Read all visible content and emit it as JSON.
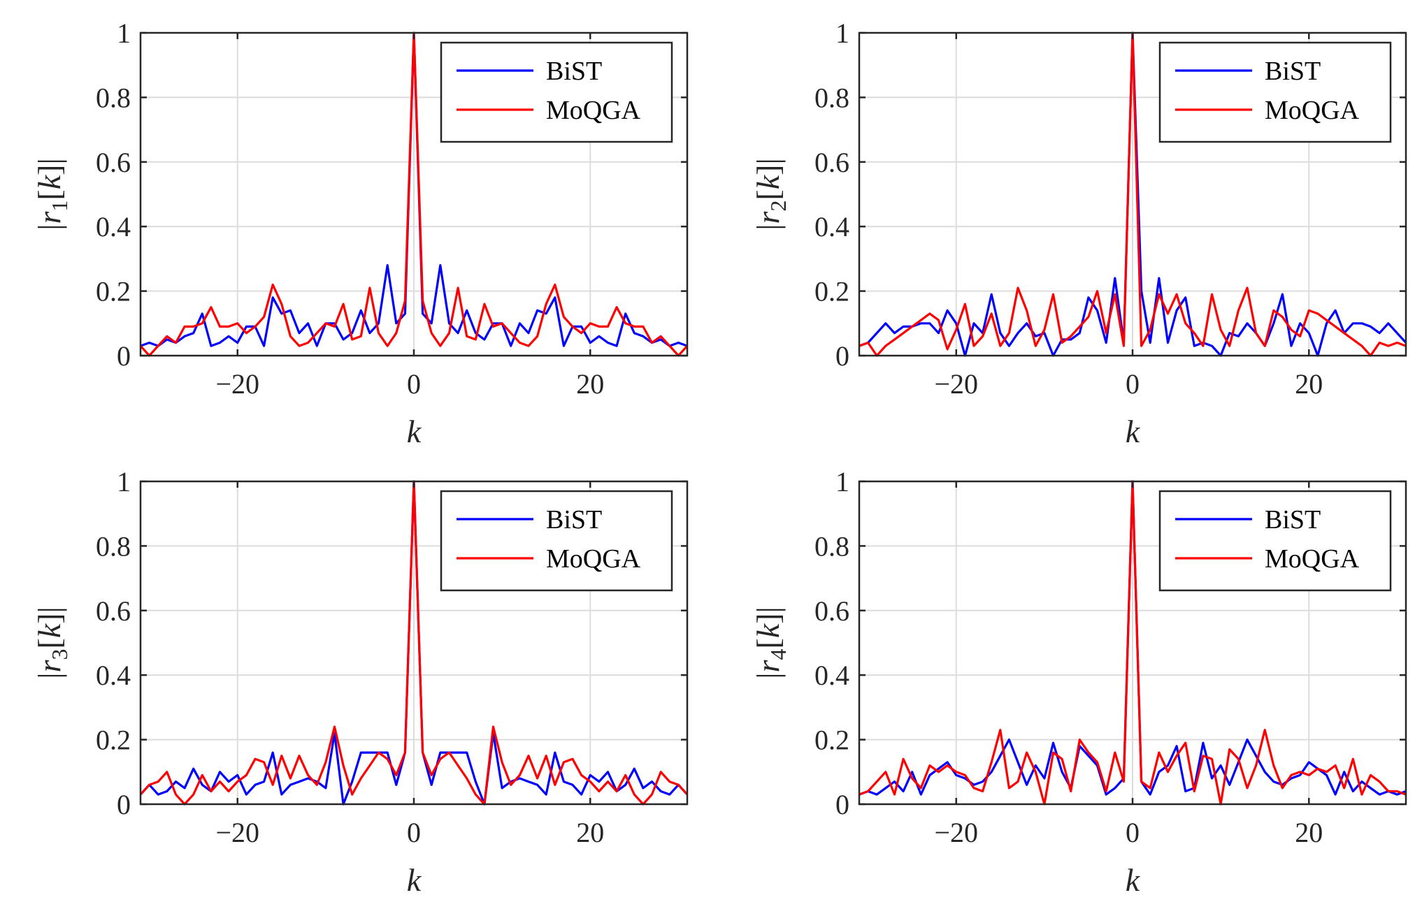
{
  "chart_data": [
    {
      "type": "line",
      "ylabel": "|r_1[k]|",
      "ylabel_parts": {
        "open": "|",
        "var": "r",
        "sub": "1",
        "mid": "[",
        "arg": "k",
        "close": "]|"
      },
      "xlabel": "k",
      "xlim": [
        -31,
        31
      ],
      "ylim": [
        0,
        1
      ],
      "xticks": [
        -20,
        0,
        20
      ],
      "xtick_labels": [
        "−20",
        "0",
        "20"
      ],
      "yticks": [
        0,
        0.2,
        0.4,
        0.6,
        0.8,
        1
      ],
      "ytick_labels": [
        "0",
        "0.2",
        "0.4",
        "0.6",
        "0.8",
        "1"
      ],
      "grid": true,
      "legend": "top-right",
      "x": [
        -31,
        -30,
        -29,
        -28,
        -27,
        -26,
        -25,
        -24,
        -23,
        -22,
        -21,
        -20,
        -19,
        -18,
        -17,
        -16,
        -15,
        -14,
        -13,
        -12,
        -11,
        -10,
        -9,
        -8,
        -7,
        -6,
        -5,
        -4,
        -3,
        -2,
        -1,
        0,
        1,
        2,
        3,
        4,
        5,
        6,
        7,
        8,
        9,
        10,
        11,
        12,
        13,
        14,
        15,
        16,
        17,
        18,
        19,
        20,
        21,
        22,
        23,
        24,
        25,
        26,
        27,
        28,
        29,
        30,
        31
      ],
      "series": [
        {
          "name": "BiST",
          "color": "#0000ff",
          "values": [
            0.03,
            0.04,
            0.03,
            0.05,
            0.04,
            0.06,
            0.07,
            0.13,
            0.03,
            0.04,
            0.06,
            0.04,
            0.09,
            0.09,
            0.03,
            0.18,
            0.13,
            0.14,
            0.07,
            0.1,
            0.03,
            0.1,
            0.1,
            0.05,
            0.07,
            0.14,
            0.07,
            0.1,
            0.28,
            0.1,
            0.13,
            1.0,
            0.13,
            0.1,
            0.28,
            0.1,
            0.07,
            0.14,
            0.07,
            0.05,
            0.1,
            0.1,
            0.03,
            0.1,
            0.07,
            0.14,
            0.13,
            0.18,
            0.03,
            0.09,
            0.09,
            0.04,
            0.06,
            0.04,
            0.03,
            0.13,
            0.07,
            0.06,
            0.04,
            0.05,
            0.03,
            0.04,
            0.03
          ]
        },
        {
          "name": "MoQGA",
          "color": "#ff0000",
          "values": [
            0.03,
            0.0,
            0.03,
            0.06,
            0.04,
            0.09,
            0.09,
            0.1,
            0.15,
            0.09,
            0.09,
            0.1,
            0.07,
            0.09,
            0.12,
            0.22,
            0.16,
            0.06,
            0.03,
            0.04,
            0.07,
            0.1,
            0.09,
            0.16,
            0.05,
            0.06,
            0.21,
            0.07,
            0.03,
            0.07,
            0.17,
            1.0,
            0.17,
            0.07,
            0.03,
            0.07,
            0.21,
            0.06,
            0.05,
            0.16,
            0.09,
            0.1,
            0.07,
            0.04,
            0.03,
            0.06,
            0.16,
            0.22,
            0.12,
            0.09,
            0.07,
            0.1,
            0.09,
            0.09,
            0.15,
            0.1,
            0.09,
            0.09,
            0.04,
            0.06,
            0.03,
            0.0,
            0.03
          ]
        }
      ]
    },
    {
      "type": "line",
      "ylabel": "|r_2[k]|",
      "ylabel_parts": {
        "open": "|",
        "var": "r",
        "sub": "2",
        "mid": "[",
        "arg": "k",
        "close": "]|"
      },
      "xlabel": "k",
      "xlim": [
        -31,
        31
      ],
      "ylim": [
        0,
        1
      ],
      "xticks": [
        -20,
        0,
        20
      ],
      "xtick_labels": [
        "−20",
        "0",
        "20"
      ],
      "yticks": [
        0,
        0.2,
        0.4,
        0.6,
        0.8,
        1
      ],
      "ytick_labels": [
        "0",
        "0.2",
        "0.4",
        "0.6",
        "0.8",
        "1"
      ],
      "grid": true,
      "legend": "top-right",
      "x": [
        -31,
        -30,
        -29,
        -28,
        -27,
        -26,
        -25,
        -24,
        -23,
        -22,
        -21,
        -20,
        -19,
        -18,
        -17,
        -16,
        -15,
        -14,
        -13,
        -12,
        -11,
        -10,
        -9,
        -8,
        -7,
        -6,
        -5,
        -4,
        -3,
        -2,
        -1,
        0,
        1,
        2,
        3,
        4,
        5,
        6,
        7,
        8,
        9,
        10,
        11,
        12,
        13,
        14,
        15,
        16,
        17,
        18,
        19,
        20,
        21,
        22,
        23,
        24,
        25,
        26,
        27,
        28,
        29,
        30,
        31
      ],
      "series": [
        {
          "name": "BiST",
          "color": "#0000ff",
          "values": [
            0.03,
            0.04,
            0.07,
            0.1,
            0.07,
            0.09,
            0.09,
            0.1,
            0.1,
            0.07,
            0.14,
            0.1,
            0.0,
            0.1,
            0.07,
            0.19,
            0.07,
            0.03,
            0.07,
            0.1,
            0.06,
            0.07,
            0.0,
            0.05,
            0.05,
            0.07,
            0.18,
            0.14,
            0.04,
            0.24,
            0.04,
            1.0,
            0.2,
            0.04,
            0.24,
            0.04,
            0.14,
            0.18,
            0.03,
            0.04,
            0.03,
            0.0,
            0.07,
            0.06,
            0.1,
            0.07,
            0.03,
            0.1,
            0.19,
            0.03,
            0.1,
            0.07,
            0.0,
            0.1,
            0.14,
            0.07,
            0.1,
            0.1,
            0.09,
            0.07,
            0.1,
            0.07,
            0.04
          ]
        },
        {
          "name": "MoQGA",
          "color": "#ff0000",
          "values": [
            0.03,
            0.04,
            0.0,
            0.03,
            0.05,
            0.07,
            0.09,
            0.11,
            0.13,
            0.11,
            0.02,
            0.08,
            0.16,
            0.03,
            0.06,
            0.13,
            0.03,
            0.07,
            0.21,
            0.14,
            0.03,
            0.08,
            0.19,
            0.04,
            0.06,
            0.09,
            0.12,
            0.2,
            0.07,
            0.19,
            0.03,
            1.0,
            0.03,
            0.08,
            0.19,
            0.13,
            0.19,
            0.1,
            0.07,
            0.03,
            0.19,
            0.08,
            0.03,
            0.14,
            0.21,
            0.07,
            0.03,
            0.14,
            0.12,
            0.08,
            0.06,
            0.14,
            0.13,
            0.11,
            0.09,
            0.07,
            0.05,
            0.03,
            0.0,
            0.04,
            0.03,
            0.04,
            0.03
          ]
        }
      ]
    },
    {
      "type": "line",
      "ylabel": "|r_3[k]|",
      "ylabel_parts": {
        "open": "|",
        "var": "r",
        "sub": "3",
        "mid": "[",
        "arg": "k",
        "close": "]|"
      },
      "xlabel": "k",
      "xlim": [
        -31,
        31
      ],
      "ylim": [
        0,
        1
      ],
      "xticks": [
        -20,
        0,
        20
      ],
      "xtick_labels": [
        "−20",
        "0",
        "20"
      ],
      "yticks": [
        0,
        0.2,
        0.4,
        0.6,
        0.8,
        1
      ],
      "ytick_labels": [
        "0",
        "0.2",
        "0.4",
        "0.6",
        "0.8",
        "1"
      ],
      "grid": true,
      "legend": "top-right",
      "x": [
        -31,
        -30,
        -29,
        -28,
        -27,
        -26,
        -25,
        -24,
        -23,
        -22,
        -21,
        -20,
        -19,
        -18,
        -17,
        -16,
        -15,
        -14,
        -13,
        -12,
        -11,
        -10,
        -9,
        -8,
        -7,
        -6,
        -5,
        -4,
        -3,
        -2,
        -1,
        0,
        1,
        2,
        3,
        4,
        5,
        6,
        7,
        8,
        9,
        10,
        11,
        12,
        13,
        14,
        15,
        16,
        17,
        18,
        19,
        20,
        21,
        22,
        23,
        24,
        25,
        26,
        27,
        28,
        29,
        30,
        31
      ],
      "series": [
        {
          "name": "BiST",
          "color": "#0000ff",
          "values": [
            0.03,
            0.06,
            0.03,
            0.04,
            0.07,
            0.05,
            0.11,
            0.06,
            0.04,
            0.1,
            0.07,
            0.09,
            0.03,
            0.06,
            0.07,
            0.16,
            0.03,
            0.06,
            0.07,
            0.08,
            0.07,
            0.05,
            0.22,
            0.0,
            0.07,
            0.16,
            0.16,
            0.16,
            0.16,
            0.06,
            0.16,
            1.0,
            0.16,
            0.06,
            0.16,
            0.16,
            0.16,
            0.16,
            0.07,
            0.0,
            0.22,
            0.05,
            0.07,
            0.08,
            0.07,
            0.06,
            0.03,
            0.16,
            0.07,
            0.06,
            0.03,
            0.09,
            0.07,
            0.1,
            0.04,
            0.06,
            0.11,
            0.05,
            0.07,
            0.04,
            0.03,
            0.06,
            0.03
          ]
        },
        {
          "name": "MoQGA",
          "color": "#ff0000",
          "values": [
            0.03,
            0.06,
            0.07,
            0.1,
            0.03,
            0.0,
            0.03,
            0.09,
            0.04,
            0.07,
            0.04,
            0.07,
            0.09,
            0.14,
            0.13,
            0.06,
            0.15,
            0.08,
            0.15,
            0.09,
            0.06,
            0.13,
            0.24,
            0.12,
            0.03,
            0.08,
            0.12,
            0.16,
            0.14,
            0.09,
            0.16,
            1.0,
            0.16,
            0.09,
            0.14,
            0.16,
            0.12,
            0.08,
            0.03,
            0.0,
            0.24,
            0.13,
            0.06,
            0.09,
            0.15,
            0.08,
            0.15,
            0.06,
            0.13,
            0.14,
            0.09,
            0.07,
            0.04,
            0.07,
            0.04,
            0.09,
            0.03,
            0.0,
            0.03,
            0.1,
            0.07,
            0.06,
            0.03
          ]
        }
      ]
    },
    {
      "type": "line",
      "ylabel": "|r_4[k]|",
      "ylabel_parts": {
        "open": "|",
        "var": "r",
        "sub": "4",
        "mid": "[",
        "arg": "k",
        "close": "]|"
      },
      "xlabel": "k",
      "xlim": [
        -31,
        31
      ],
      "ylim": [
        0,
        1
      ],
      "xticks": [
        -20,
        0,
        20
      ],
      "xtick_labels": [
        "−20",
        "0",
        "20"
      ],
      "yticks": [
        0,
        0.2,
        0.4,
        0.6,
        0.8,
        1
      ],
      "ytick_labels": [
        "0",
        "0.2",
        "0.4",
        "0.6",
        "0.8",
        "1"
      ],
      "grid": true,
      "legend": "top-right",
      "x": [
        -31,
        -30,
        -29,
        -28,
        -27,
        -26,
        -25,
        -24,
        -23,
        -22,
        -21,
        -20,
        -19,
        -18,
        -17,
        -16,
        -15,
        -14,
        -13,
        -12,
        -11,
        -10,
        -9,
        -8,
        -7,
        -6,
        -5,
        -4,
        -3,
        -2,
        -1,
        0,
        1,
        2,
        3,
        4,
        5,
        6,
        7,
        8,
        9,
        10,
        11,
        12,
        13,
        14,
        15,
        16,
        17,
        18,
        19,
        20,
        21,
        22,
        23,
        24,
        25,
        26,
        27,
        28,
        29,
        30,
        31
      ],
      "series": [
        {
          "name": "BiST",
          "color": "#0000ff",
          "values": [
            0.03,
            0.04,
            0.03,
            0.05,
            0.07,
            0.04,
            0.1,
            0.03,
            0.09,
            0.11,
            0.13,
            0.09,
            0.08,
            0.06,
            0.07,
            0.1,
            0.15,
            0.2,
            0.13,
            0.06,
            0.12,
            0.08,
            0.19,
            0.1,
            0.05,
            0.18,
            0.15,
            0.12,
            0.03,
            0.05,
            0.08,
            1.0,
            0.07,
            0.03,
            0.1,
            0.12,
            0.18,
            0.04,
            0.05,
            0.19,
            0.08,
            0.12,
            0.06,
            0.13,
            0.2,
            0.15,
            0.1,
            0.07,
            0.06,
            0.08,
            0.09,
            0.13,
            0.11,
            0.09,
            0.03,
            0.1,
            0.04,
            0.07,
            0.05,
            0.03,
            0.04,
            0.03,
            0.04
          ]
        },
        {
          "name": "MoQGA",
          "color": "#ff0000",
          "values": [
            0.03,
            0.04,
            0.07,
            0.1,
            0.03,
            0.14,
            0.08,
            0.05,
            0.12,
            0.1,
            0.12,
            0.1,
            0.09,
            0.05,
            0.04,
            0.13,
            0.23,
            0.05,
            0.07,
            0.16,
            0.1,
            0.0,
            0.16,
            0.14,
            0.04,
            0.2,
            0.16,
            0.13,
            0.04,
            0.16,
            0.07,
            1.0,
            0.07,
            0.05,
            0.16,
            0.1,
            0.15,
            0.19,
            0.04,
            0.15,
            0.14,
            0.0,
            0.17,
            0.14,
            0.05,
            0.12,
            0.23,
            0.12,
            0.05,
            0.09,
            0.1,
            0.09,
            0.11,
            0.1,
            0.12,
            0.05,
            0.14,
            0.03,
            0.09,
            0.07,
            0.04,
            0.04,
            0.03
          ]
        }
      ]
    }
  ]
}
